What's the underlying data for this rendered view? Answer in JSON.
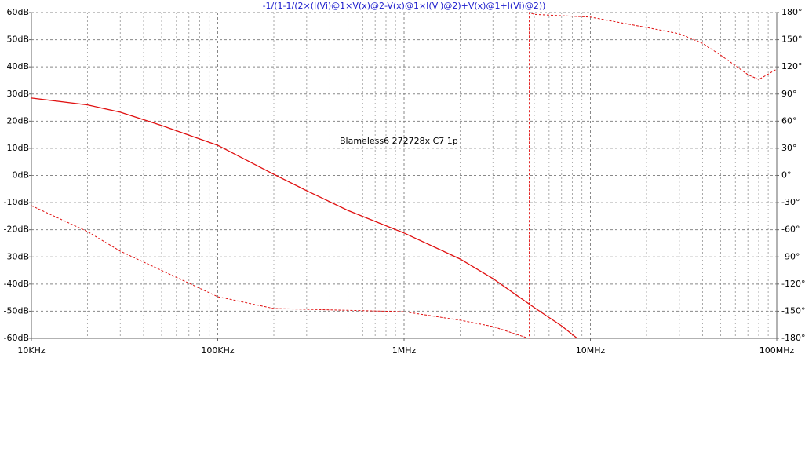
{
  "chart_data": {
    "type": "line",
    "annotations": [
      "Blameless6 272728x C7 1p"
    ],
    "xscale": "log",
    "xlim": [
      10000,
      100000000
    ],
    "xticks": [
      {
        "value": 10000,
        "label": "10KHz"
      },
      {
        "value": 100000,
        "label": "100KHz"
      },
      {
        "value": 1000000,
        "label": "1MHz"
      },
      {
        "value": 10000000,
        "label": "10MHz"
      },
      {
        "value": 100000000,
        "label": "100MHz"
      }
    ],
    "ylim": [
      -60,
      60
    ],
    "yticks": [
      {
        "value": 60,
        "label": "60dB"
      },
      {
        "value": 50,
        "label": "50dB"
      },
      {
        "value": 40,
        "label": "40dB"
      },
      {
        "value": 30,
        "label": "30dB"
      },
      {
        "value": 20,
        "label": "20dB"
      },
      {
        "value": 10,
        "label": "10dB"
      },
      {
        "value": 0,
        "label": "0dB"
      },
      {
        "value": -10,
        "label": "-10dB"
      },
      {
        "value": -20,
        "label": "-20dB"
      },
      {
        "value": -30,
        "label": "-30dB"
      },
      {
        "value": -40,
        "label": "-40dB"
      },
      {
        "value": -50,
        "label": "-50dB"
      },
      {
        "value": -60,
        "label": "-60dB"
      }
    ],
    "y2lim": [
      -180,
      180
    ],
    "y2ticks": [
      {
        "value": 180,
        "label": "180°"
      },
      {
        "value": 150,
        "label": "150°"
      },
      {
        "value": 120,
        "label": "120°"
      },
      {
        "value": 90,
        "label": "90°"
      },
      {
        "value": 60,
        "label": "60°"
      },
      {
        "value": 30,
        "label": "30°"
      },
      {
        "value": 0,
        "label": "0°"
      },
      {
        "value": -30,
        "label": "-30°"
      },
      {
        "value": -60,
        "label": "-60°"
      },
      {
        "value": -90,
        "label": "-90°"
      },
      {
        "value": -120,
        "label": "-120°"
      },
      {
        "value": -150,
        "label": "-150°"
      },
      {
        "value": -180,
        "label": "-180°"
      }
    ],
    "grid": true,
    "series": [
      {
        "name": "-1/(1-1/(2×(I(Vi)@1×V(x)@2-V(x)@1×I(Vi)@2)+V(x)@1+I(Vi)@2))",
        "color": "#e01010",
        "style": "solid",
        "x": [
          10000,
          20000,
          30000,
          50000,
          100000,
          200000,
          300000,
          500000,
          1000000,
          2000000,
          3000000,
          5000000,
          7000000,
          8500000
        ],
        "values": [
          28.5,
          26,
          23.3,
          18.4,
          11.1,
          0.4,
          -5.6,
          -12.9,
          -21.2,
          -30.8,
          -38,
          -48.7,
          -55.4,
          -60
        ]
      },
      {
        "color": "#e01010",
        "style": "dashed",
        "axis": "y2",
        "x": [
          10000,
          20000,
          30000,
          50000,
          100000,
          200000,
          500000,
          1000000,
          2000000,
          3000000,
          4500000,
          4700000,
          4700000,
          5000000,
          10000000,
          20000000,
          30000000,
          40000000,
          50000000,
          70000000,
          80000000,
          100000000
        ],
        "values": [
          -33.4,
          -62,
          -83.7,
          -105,
          -134,
          -147,
          -149,
          -150.5,
          -160,
          -167,
          -179,
          -180,
          180,
          178,
          175,
          163.5,
          156.6,
          146,
          133,
          111.5,
          106,
          117.5
        ]
      }
    ]
  }
}
